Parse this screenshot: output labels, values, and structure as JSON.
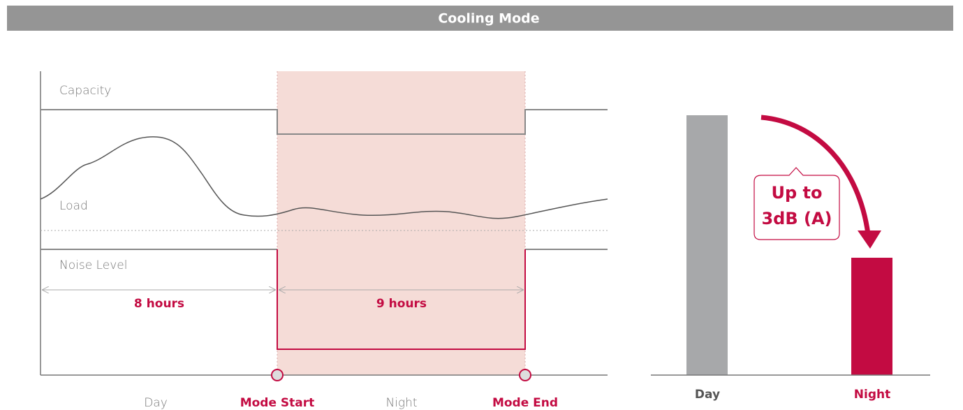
{
  "header": {
    "title": "Cooling Mode"
  },
  "timeline": {
    "curves": {
      "capacity": "Capacity",
      "load": "Load",
      "noise": "Noise Level"
    },
    "durations": {
      "day": "8 hours",
      "night": "9 hours"
    },
    "axis_labels": {
      "day": "Day",
      "mode_start": "Mode Start",
      "night": "Night",
      "mode_end": "Mode End"
    }
  },
  "comparison": {
    "callout": [
      "Up to",
      "3dB (A)"
    ],
    "labels": {
      "day": "Day",
      "night": "Night"
    }
  }
}
